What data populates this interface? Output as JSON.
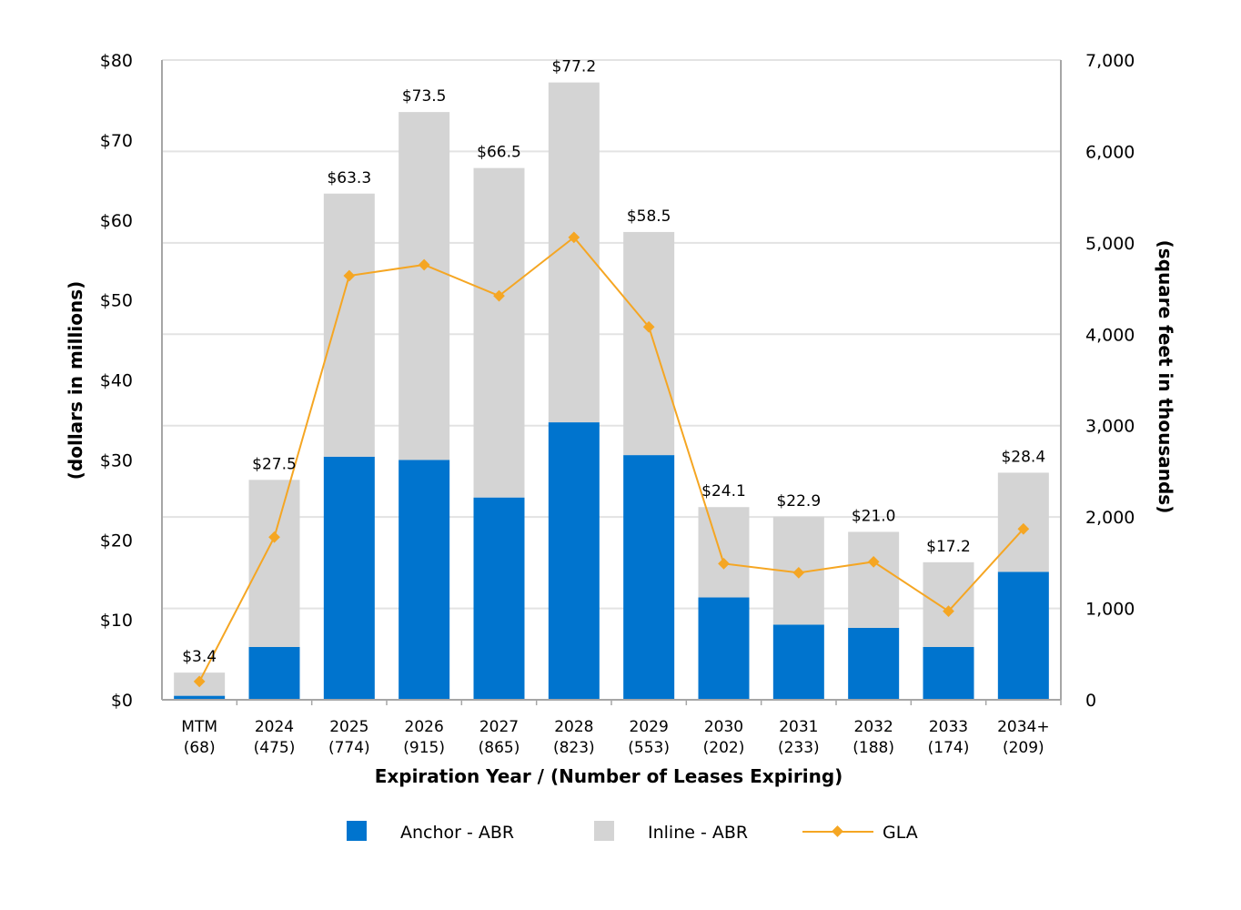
{
  "chart_data": {
    "type": "bar",
    "stacked": true,
    "categories": [
      "MTM",
      "2024",
      "2025",
      "2026",
      "2027",
      "2028",
      "2029",
      "2030",
      "2031",
      "2032",
      "2033",
      "2034+"
    ],
    "lease_counts": [
      "(68)",
      "(475)",
      "(774)",
      "(915)",
      "(865)",
      "(823)",
      "(553)",
      "(202)",
      "(233)",
      "(188)",
      "(174)",
      "(209)"
    ],
    "series": [
      {
        "name": "Anchor - ABR",
        "type": "bar",
        "axis": "left",
        "color": "#0074CE",
        "values": [
          0.5,
          6.6,
          30.4,
          30.0,
          25.3,
          34.7,
          30.6,
          12.8,
          9.4,
          9.0,
          6.6,
          16.0
        ]
      },
      {
        "name": "Inline - ABR",
        "type": "bar",
        "axis": "left",
        "color": "#D4D4D4",
        "values": [
          2.9,
          20.9,
          32.9,
          43.5,
          41.2,
          42.5,
          27.9,
          11.3,
          13.5,
          12.0,
          10.6,
          12.4
        ]
      },
      {
        "name": "GLA",
        "type": "line",
        "axis": "right",
        "color": "#F5A623",
        "values": [
          200,
          1780,
          4640,
          4760,
          4420,
          5060,
          4080,
          1490,
          1390,
          1510,
          970,
          1870
        ]
      }
    ],
    "totals_labels": [
      "$3.4",
      "$27.5",
      "$63.3",
      "$73.5",
      "$66.5",
      "$77.2",
      "$58.5",
      "$24.1",
      "$22.9",
      "$21.0",
      "$17.2",
      "$28.4"
    ],
    "totals": [
      3.4,
      27.5,
      63.3,
      73.5,
      66.5,
      77.2,
      58.5,
      24.1,
      22.9,
      21.0,
      17.2,
      28.4
    ],
    "xlabel": "Expiration Year / (Number of Leases Expiring)",
    "ylabel_left": "(dollars in millions)",
    "ylabel_right": "(square feet in thousands)",
    "ylim_left": [
      0,
      80
    ],
    "ylim_right": [
      0,
      7000
    ],
    "left_ticks": [
      0,
      10,
      20,
      30,
      40,
      50,
      60,
      70,
      80
    ],
    "left_tick_labels": [
      "$0",
      "$10",
      "$20",
      "$30",
      "$40",
      "$50",
      "$60",
      "$70",
      "$80"
    ],
    "right_ticks": [
      0,
      1000,
      2000,
      3000,
      4000,
      5000,
      6000,
      7000
    ],
    "right_tick_labels": [
      "0",
      "1,000",
      "2,000",
      "3,000",
      "4,000",
      "5,000",
      "6,000",
      "7,000"
    ],
    "grid": true,
    "legend": {
      "position": "bottom",
      "entries": [
        "Anchor - ABR",
        "Inline - ABR",
        "GLA"
      ]
    }
  }
}
